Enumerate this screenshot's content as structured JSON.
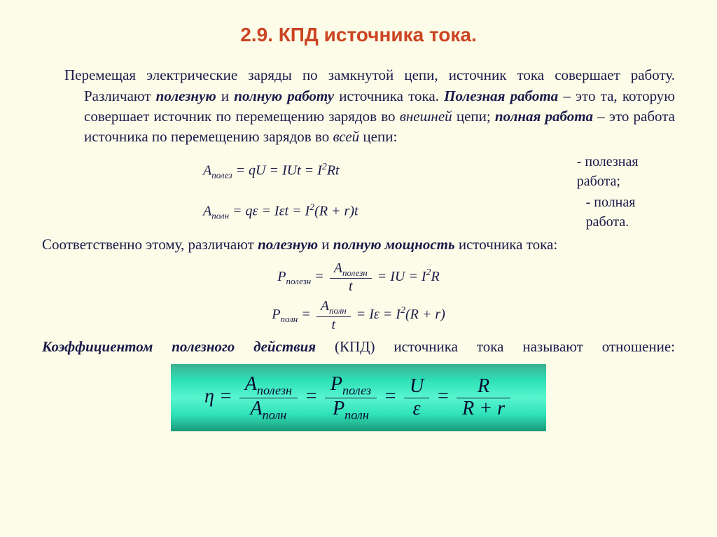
{
  "title": "2.9. КПД источника тока.",
  "intro": {
    "p1_a": "Перемещая электрические заряды по замкнутой цепи, источник тока совершает работу. Различают ",
    "p1_b": "полезную",
    "p1_c": " и ",
    "p1_d": "полную работу",
    "p1_e": " источника тока. ",
    "p1_f": "Полезная работа",
    "p1_g": " – это та, которую совершает источник по перемещению зарядов во ",
    "p1_h": "внешней",
    "p1_i": " цепи; ",
    "p1_j": "полная работа",
    "p1_k": " – это работа источника по перемещению зарядов во ",
    "p1_l": "всей",
    "p1_m": " цепи:"
  },
  "eq1": {
    "lhs": "A",
    "sub1": "полез",
    "full": " = qU = IUt = I",
    "sup": "2",
    "tail": "Rt",
    "desc": "-  полезная работа;"
  },
  "eq2": {
    "lhs": "A",
    "sub1": "полн",
    "a": " = q",
    "b": " = I",
    "c": "t = I",
    "sup": "2",
    "d": "(R + r)t",
    "desc": "-  полная работа."
  },
  "mid": {
    "a": "Соответственно этому, различают ",
    "b": "полезную",
    "c": " и ",
    "d": "полную мощность",
    "e": " источника тока:"
  },
  "eq3": {
    "P": "P",
    "sub": "полезн",
    "numA": "A",
    "numSub": "полезн",
    "den": "t",
    "rhs1": " = IU = I",
    "sup": "2",
    "rhs2": "R"
  },
  "eq4": {
    "P": "P",
    "sub": "полн",
    "numA": "A",
    "numSub": "полн",
    "den": "t",
    "rhs1": " = I",
    "rhs2": " = I",
    "sup": "2",
    "rhs3": "(R + r)"
  },
  "def": {
    "a": "Коэффициентом полезного действия",
    "b": " (КПД) источника тока называют отношение:"
  },
  "hl": {
    "eta": "η",
    "A1": "A",
    "A1s": "полезн",
    "A2": "A",
    "A2s": "полн",
    "P1": "P",
    "P1s": "полез",
    "P2": "P",
    "P2s": "полн",
    "U": "U",
    "eps": "ε",
    "R": "R",
    "Rr": "R + r"
  },
  "colors": {
    "bg": "#fcfce8",
    "title": "#cc4422",
    "text": "#1a1a4a",
    "highlight_grad": [
      "#3ab090",
      "#58f5cf",
      "#1a9878"
    ]
  },
  "typography": {
    "title_fontsize": 28,
    "body_fontsize": 21,
    "eq_fontsize": 20,
    "highlight_fontsize": 28
  }
}
